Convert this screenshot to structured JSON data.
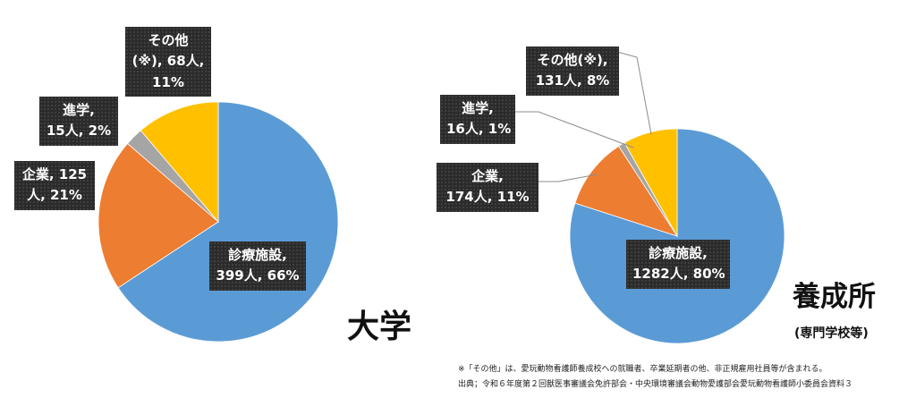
{
  "chart_data": [
    {
      "type": "pie",
      "title": "大学",
      "subtitle": "",
      "slices": [
        {
          "name": "診療施設",
          "value": 399,
          "percent": 66,
          "color": "#5b9bd5"
        },
        {
          "name": "企業",
          "value": 125,
          "percent": 21,
          "color": "#ed7d31"
        },
        {
          "name": "進学",
          "value": 15,
          "percent": 2,
          "color": "#a5a5a5"
        },
        {
          "name": "その他 (※)",
          "value": 68,
          "percent": 11,
          "color": "#ffc000"
        }
      ],
      "labels": [
        {
          "line1": "診療施設,",
          "line2": "399人, 66%"
        },
        {
          "line1": "企業, 125",
          "line2": "人, 21%"
        },
        {
          "line1": "進学,",
          "line2": "15人, 2%"
        },
        {
          "line1": "その他",
          "line2": "(※), 68人,",
          "line3": "11%"
        }
      ]
    },
    {
      "type": "pie",
      "title": "養成所",
      "subtitle": "(専門学校等)",
      "slices": [
        {
          "name": "診療施設",
          "value": 1282,
          "percent": 80,
          "color": "#5b9bd5"
        },
        {
          "name": "企業",
          "value": 174,
          "percent": 11,
          "color": "#ed7d31"
        },
        {
          "name": "進学",
          "value": 16,
          "percent": 1,
          "color": "#a5a5a5"
        },
        {
          "name": "その他(※)",
          "value": 131,
          "percent": 8,
          "color": "#ffc000"
        }
      ],
      "labels": [
        {
          "line1": "診療施設,",
          "line2": "1282人, 80%"
        },
        {
          "line1": "企業,",
          "line2": "174人, 11%"
        },
        {
          "line1": "進学,",
          "line2": "16人, 1%"
        },
        {
          "line1": "その他(※),",
          "line2": "131人, 8%"
        }
      ]
    }
  ],
  "footnotes": {
    "note": "※「その他」は、愛玩動物看護師養成校への就職者、卒業延期者の他、非正規雇用社員等が含まれる。",
    "source": "出典；令和６年度第２回獣医事審議会免許部会・中央環境審議会動物愛護部会愛玩動物看護師小委員会資料３"
  }
}
